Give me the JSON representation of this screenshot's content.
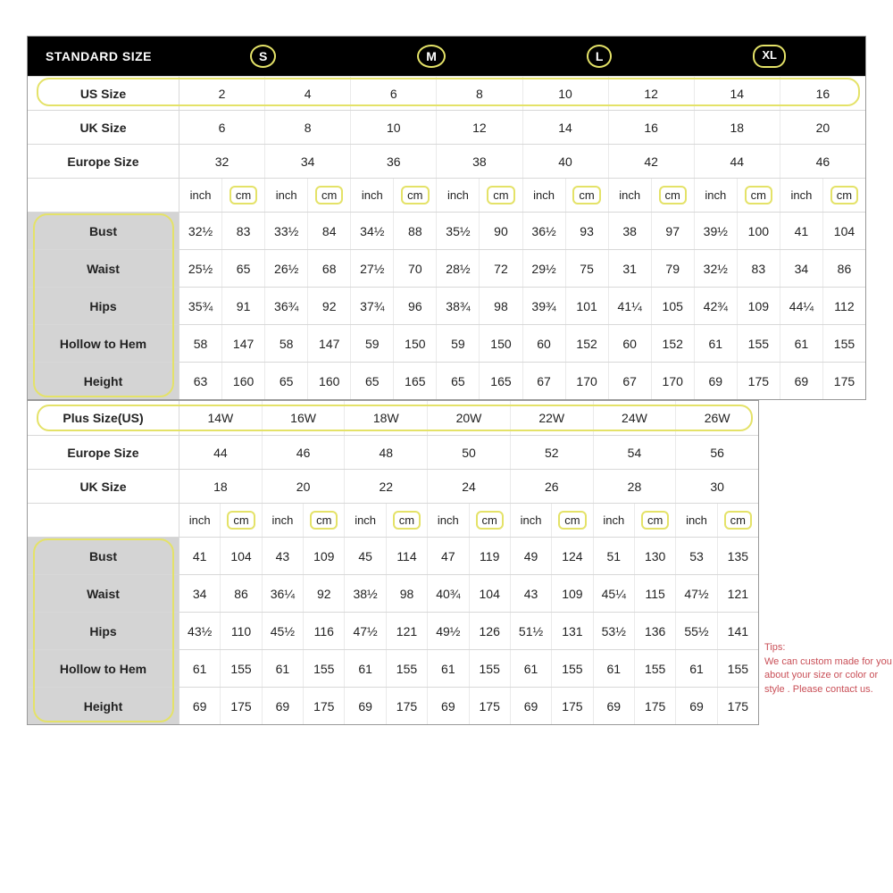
{
  "colors": {
    "highlight": "#e4e268",
    "tips_text": "#c94f57",
    "header_bg": "#000000",
    "header_fg": "#ffffff",
    "shade_bg": "#d4d4d4",
    "border": "#d8d8d8",
    "cell_border": "#eaeaea",
    "text": "#222222"
  },
  "table1": {
    "header_label": "STANDARD SIZE",
    "header_sizes": [
      "S",
      "M",
      "L",
      "XL"
    ],
    "label_rows": [
      {
        "label": "US Size",
        "vals": [
          "2",
          "4",
          "6",
          "8",
          "10",
          "12",
          "14",
          "16"
        ],
        "hl_row": true
      },
      {
        "label": "UK Size",
        "vals": [
          "6",
          "8",
          "10",
          "12",
          "14",
          "16",
          "18",
          "20"
        ]
      },
      {
        "label": "Europe Size",
        "vals": [
          "32",
          "34",
          "36",
          "38",
          "40",
          "42",
          "44",
          "46"
        ]
      }
    ],
    "unit_labels": {
      "a": "inch",
      "b": "cm"
    },
    "measure_rows": [
      {
        "label": "Bust",
        "vals": [
          "32½",
          "83",
          "33½",
          "84",
          "34½",
          "88",
          "35½",
          "90",
          "36½",
          "93",
          "38",
          "97",
          "39½",
          "100",
          "41",
          "104"
        ]
      },
      {
        "label": "Waist",
        "vals": [
          "25½",
          "65",
          "26½",
          "68",
          "27½",
          "70",
          "28½",
          "72",
          "29½",
          "75",
          "31",
          "79",
          "32½",
          "83",
          "34",
          "86"
        ]
      },
      {
        "label": "Hips",
        "vals": [
          "35¾",
          "91",
          "36¾",
          "92",
          "37¾",
          "96",
          "38¾",
          "98",
          "39¾",
          "101",
          "41¼",
          "105",
          "42¾",
          "109",
          "44¼",
          "112"
        ]
      },
      {
        "label": "Hollow to Hem",
        "vals": [
          "58",
          "147",
          "58",
          "147",
          "59",
          "150",
          "59",
          "150",
          "60",
          "152",
          "60",
          "152",
          "61",
          "155",
          "61",
          "155"
        ]
      },
      {
        "label": "Height",
        "vals": [
          "63",
          "160",
          "65",
          "160",
          "65",
          "165",
          "65",
          "165",
          "67",
          "170",
          "67",
          "170",
          "69",
          "175",
          "69",
          "175"
        ]
      }
    ]
  },
  "table2": {
    "label_rows": [
      {
        "label": "Plus Size(US)",
        "vals": [
          "14W",
          "16W",
          "18W",
          "20W",
          "22W",
          "24W",
          "26W"
        ],
        "hl_row": true
      },
      {
        "label": "Europe Size",
        "vals": [
          "44",
          "46",
          "48",
          "50",
          "52",
          "54",
          "56"
        ]
      },
      {
        "label": "UK Size",
        "vals": [
          "18",
          "20",
          "22",
          "24",
          "26",
          "28",
          "30"
        ]
      }
    ],
    "unit_labels": {
      "a": "inch",
      "b": "cm"
    },
    "measure_rows": [
      {
        "label": "Bust",
        "vals": [
          "41",
          "104",
          "43",
          "109",
          "45",
          "114",
          "47",
          "119",
          "49",
          "124",
          "51",
          "130",
          "53",
          "135"
        ]
      },
      {
        "label": "Waist",
        "vals": [
          "34",
          "86",
          "36¼",
          "92",
          "38½",
          "98",
          "40¾",
          "104",
          "43",
          "109",
          "45¼",
          "115",
          "47½",
          "121"
        ]
      },
      {
        "label": "Hips",
        "vals": [
          "43½",
          "110",
          "45½",
          "116",
          "47½",
          "121",
          "49½",
          "126",
          "51½",
          "131",
          "53½",
          "136",
          "55½",
          "141"
        ]
      },
      {
        "label": "Hollow to Hem",
        "vals": [
          "61",
          "155",
          "61",
          "155",
          "61",
          "155",
          "61",
          "155",
          "61",
          "155",
          "61",
          "155",
          "61",
          "155"
        ]
      },
      {
        "label": "Height",
        "vals": [
          "69",
          "175",
          "69",
          "175",
          "69",
          "175",
          "69",
          "175",
          "69",
          "175",
          "69",
          "175",
          "69",
          "175"
        ]
      }
    ]
  },
  "tips": {
    "title": "Tips:",
    "body": "We can custom made for you about your size or color or style . Please contact us."
  }
}
